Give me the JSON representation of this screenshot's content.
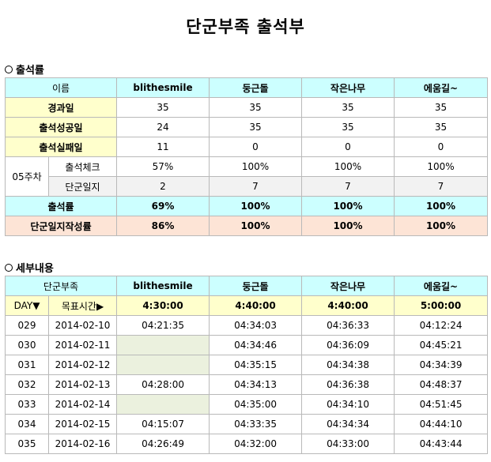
{
  "page_title": "단군부족 출석부",
  "section1": {
    "label": "출석률",
    "header": [
      "이름",
      "blithesmile",
      "둥근돌",
      "작은나무",
      "에움길~"
    ],
    "rows": {
      "elapsed": {
        "label": "경과일",
        "values": [
          "35",
          "35",
          "35",
          "35"
        ]
      },
      "success": {
        "label": "출석성공일",
        "values": [
          "24",
          "35",
          "35",
          "35"
        ]
      },
      "fail": {
        "label": "출석실패일",
        "values": [
          "11",
          "0",
          "0",
          "0"
        ]
      },
      "week_label": "05주차",
      "check": {
        "label": "출석체크",
        "values": [
          "57%",
          "100%",
          "100%",
          "100%"
        ]
      },
      "journal": {
        "label": "단군일지",
        "values": [
          "2",
          "7",
          "7",
          "7"
        ]
      },
      "rate": {
        "label": "출석률",
        "values": [
          "69%",
          "100%",
          "100%",
          "100%"
        ]
      },
      "journal_rate": {
        "label": "단군일지작성률",
        "values": [
          "86%",
          "100%",
          "100%",
          "100%"
        ]
      }
    }
  },
  "section2": {
    "label": "세부내용",
    "header": [
      "단군부족",
      "blithesmile",
      "둥근돌",
      "작은나무",
      "에움길~"
    ],
    "target": {
      "day_label": "DAY▼",
      "target_label": "목표시간▶",
      "values": [
        "4:30:00",
        "4:40:00",
        "4:40:00",
        "5:00:00"
      ]
    },
    "rows": [
      {
        "day": "029",
        "date": "2014-02-10",
        "times": [
          "04:21:35",
          "04:34:03",
          "04:36:33",
          "04:12:24"
        ]
      },
      {
        "day": "030",
        "date": "2014-02-11",
        "times": [
          "",
          "04:34:46",
          "04:36:09",
          "04:45:21"
        ]
      },
      {
        "day": "031",
        "date": "2014-02-12",
        "times": [
          "",
          "04:35:15",
          "04:34:38",
          "04:34:39"
        ]
      },
      {
        "day": "032",
        "date": "2014-02-13",
        "times": [
          "04:28:00",
          "04:34:13",
          "04:36:38",
          "04:48:37"
        ]
      },
      {
        "day": "033",
        "date": "2014-02-14",
        "times": [
          "",
          "04:35:00",
          "04:34:10",
          "04:51:45"
        ]
      },
      {
        "day": "034",
        "date": "2014-02-15",
        "times": [
          "04:15:07",
          "04:33:35",
          "04:34:34",
          "04:44:10"
        ]
      },
      {
        "day": "035",
        "date": "2014-02-16",
        "times": [
          "04:26:49",
          "04:32:00",
          "04:33:00",
          "04:43:44"
        ]
      }
    ]
  },
  "colors": {
    "header_cyan": "#ccffff",
    "label_yellow": "#ffffcc",
    "summary_peach": "#fde4d6",
    "weekly_gray": "#f2f2f2",
    "missing_olive": "#ebf1de",
    "border": "#b9b9b9"
  }
}
